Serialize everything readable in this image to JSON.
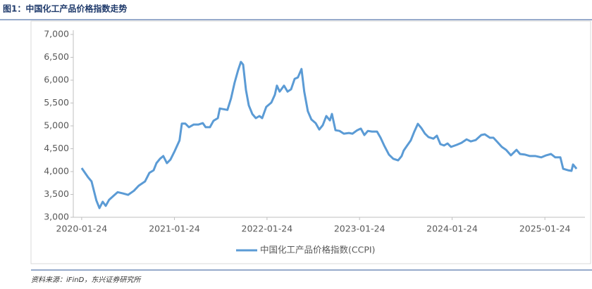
{
  "title": "图1：中国化工产品价格指数走势",
  "source": "资料来源：iFinD，东兴证券研究所",
  "chart_data": {
    "type": "line",
    "x": [
      "2020-01-24",
      "2020-02-18",
      "2020-03-03",
      "2020-03-22",
      "2020-04-03",
      "2020-04-16",
      "2020-04-28",
      "2020-05-11",
      "2020-05-31",
      "2020-06-14",
      "2020-07-06",
      "2020-07-25",
      "2020-08-17",
      "2020-09-05",
      "2020-09-30",
      "2020-10-17",
      "2020-11-03",
      "2020-11-14",
      "2020-11-28",
      "2020-12-11",
      "2020-12-25",
      "2021-01-08",
      "2021-01-25",
      "2021-02-13",
      "2021-02-22",
      "2021-03-08",
      "2021-03-22",
      "2021-04-10",
      "2021-04-29",
      "2021-05-16",
      "2021-05-27",
      "2021-06-13",
      "2021-06-27",
      "2021-07-14",
      "2021-07-22",
      "2021-08-21",
      "2021-09-04",
      "2021-09-18",
      "2021-10-02",
      "2021-10-13",
      "2021-10-22",
      "2021-11-02",
      "2021-11-13",
      "2021-11-27",
      "2021-12-11",
      "2021-12-25",
      "2022-01-05",
      "2022-01-21",
      "2022-02-10",
      "2022-02-24",
      "2022-03-04",
      "2022-03-15",
      "2022-04-01",
      "2022-04-15",
      "2022-04-29",
      "2022-05-13",
      "2022-05-26",
      "2022-06-09",
      "2022-06-20",
      "2022-07-04",
      "2022-07-18",
      "2022-08-04",
      "2022-08-18",
      "2022-09-01",
      "2022-09-15",
      "2022-09-29",
      "2022-10-07",
      "2022-10-21",
      "2022-11-06",
      "2022-11-23",
      "2022-12-13",
      "2022-12-27",
      "2023-01-15",
      "2023-01-29",
      "2023-02-12",
      "2023-02-26",
      "2023-03-14",
      "2023-04-03",
      "2023-04-17",
      "2023-05-01",
      "2023-05-20",
      "2023-06-06",
      "2023-06-25",
      "2023-07-09",
      "2023-07-17",
      "2023-07-31",
      "2023-08-14",
      "2023-08-28",
      "2023-09-11",
      "2023-09-25",
      "2023-10-09",
      "2023-10-23",
      "2023-11-11",
      "2023-11-25",
      "2023-12-09",
      "2023-12-23",
      "2024-01-06",
      "2024-01-20",
      "2024-02-11",
      "2024-03-01",
      "2024-03-21",
      "2024-04-07",
      "2024-04-26",
      "2024-05-18",
      "2024-06-01",
      "2024-06-21",
      "2024-07-05",
      "2024-07-21",
      "2024-08-07",
      "2024-08-24",
      "2024-09-12",
      "2024-10-04",
      "2024-10-18",
      "2024-11-07",
      "2024-11-26",
      "2024-12-18",
      "2025-01-10",
      "2025-01-29",
      "2025-02-17",
      "2025-03-06",
      "2025-03-26",
      "2025-04-06",
      "2025-04-25",
      "2025-05-09",
      "2025-05-15",
      "2025-05-29"
    ],
    "series": [
      {
        "name": "中国化工产品价格指数(CCPI)",
        "color": "#5b9bd5",
        "values": [
          4077,
          3877,
          3785,
          3370,
          3200,
          3340,
          3250,
          3380,
          3480,
          3550,
          3520,
          3490,
          3580,
          3690,
          3785,
          3970,
          4030,
          4185,
          4280,
          4340,
          4185,
          4260,
          4450,
          4680,
          5050,
          5050,
          4970,
          5030,
          5030,
          5060,
          4970,
          4970,
          5110,
          5170,
          5380,
          5350,
          5600,
          5940,
          6215,
          6400,
          6340,
          5785,
          5450,
          5260,
          5170,
          5215,
          5170,
          5415,
          5510,
          5680,
          5880,
          5750,
          5880,
          5750,
          5800,
          6030,
          6060,
          6245,
          5750,
          5320,
          5140,
          5060,
          4920,
          5015,
          5215,
          5120,
          5260,
          4905,
          4890,
          4830,
          4845,
          4830,
          4905,
          4940,
          4800,
          4890,
          4875,
          4875,
          4740,
          4570,
          4370,
          4280,
          4245,
          4340,
          4460,
          4570,
          4680,
          4875,
          5045,
          4950,
          4830,
          4755,
          4720,
          4785,
          4600,
          4570,
          4615,
          4540,
          4585,
          4630,
          4705,
          4660,
          4690,
          4800,
          4815,
          4740,
          4740,
          4645,
          4540,
          4475,
          4355,
          4475,
          4385,
          4370,
          4340,
          4340,
          4310,
          4355,
          4385,
          4310,
          4310,
          4060,
          4030,
          4015,
          4155,
          4060
        ]
      }
    ],
    "xlim": [
      "2019-12-22",
      "2025-07-01"
    ],
    "xticks": [
      "2020-01-24",
      "2021-01-24",
      "2022-01-24",
      "2023-01-24",
      "2024-01-24",
      "2025-01-24"
    ],
    "ylim": [
      3000,
      7000
    ],
    "yticks": [
      {
        "value": 3000,
        "label": "3,000"
      },
      {
        "value": 3500,
        "label": "3,500"
      },
      {
        "value": 4000,
        "label": "4,000"
      },
      {
        "value": 4500,
        "label": "4,500"
      },
      {
        "value": 5000,
        "label": "5,000"
      },
      {
        "value": 5500,
        "label": "5,500"
      },
      {
        "value": 6000,
        "label": "6,000"
      },
      {
        "value": 6500,
        "label": "6,500"
      },
      {
        "value": 7000,
        "label": "7,000"
      }
    ],
    "grid": false,
    "legend": "bottom"
  }
}
